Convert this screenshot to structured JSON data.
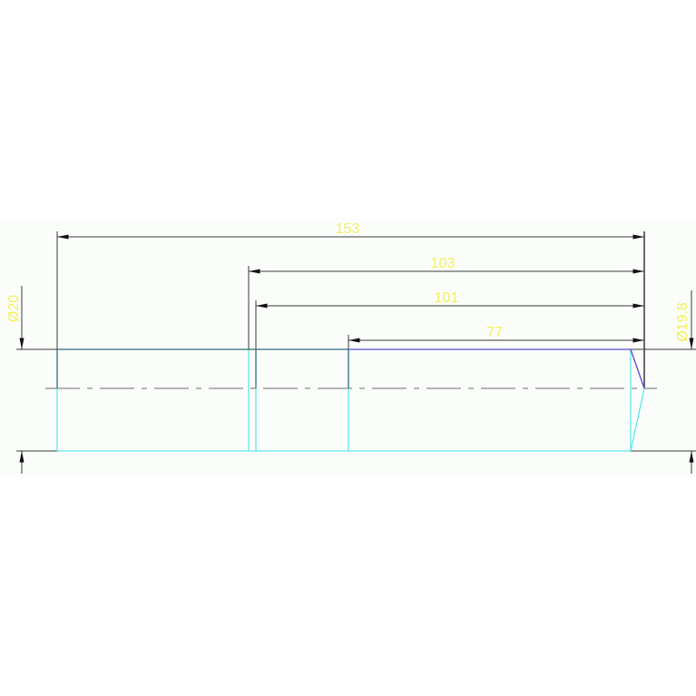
{
  "drawing": {
    "colors": {
      "background": "#fbfdfb",
      "dimension_line": "#3a3a3a",
      "dimension_text": "#f4f05a",
      "outline_cyan": "#5ee8f0",
      "outline_teal": "#2e6e78",
      "outline_blue": "#5a4ad0",
      "centerline": "#8a8a8a"
    },
    "dimensions": {
      "d153": "153",
      "d103": "103",
      "d101": "101",
      "d77": "77",
      "dia_left": "Ø20",
      "dia_right": "Ø19.8"
    }
  }
}
